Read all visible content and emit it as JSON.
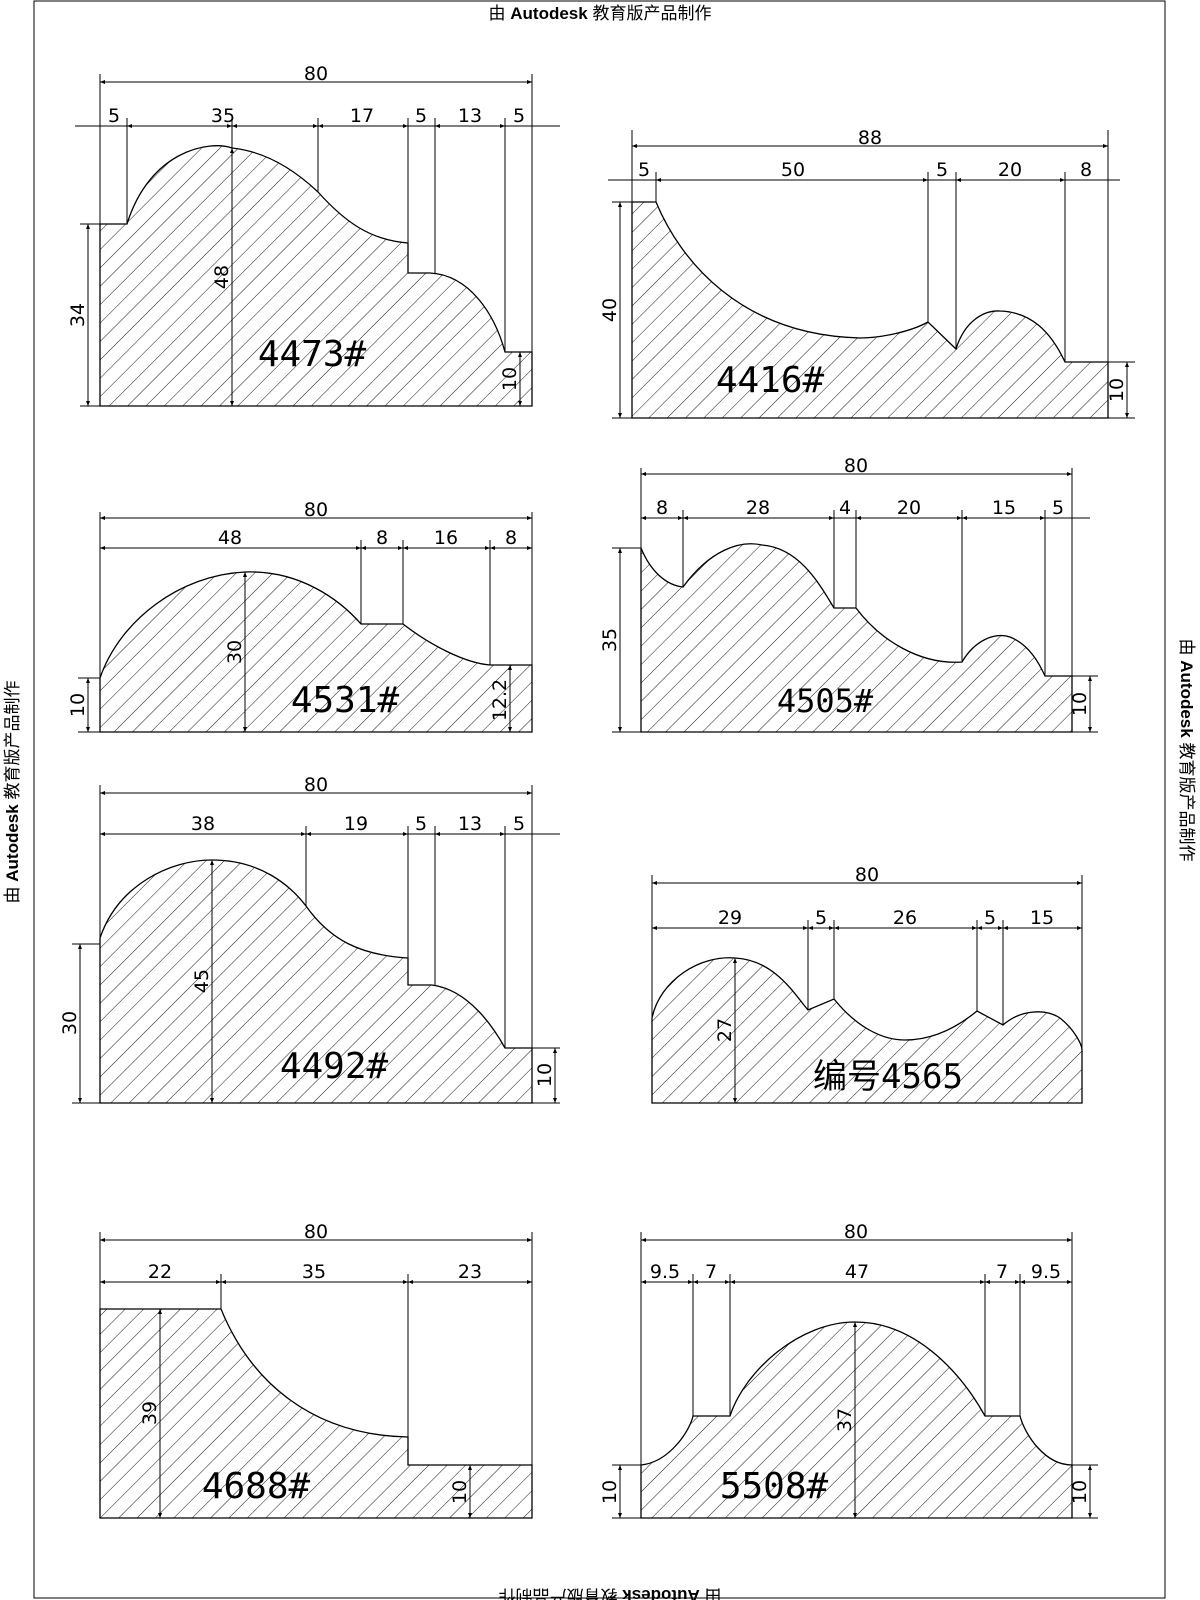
{
  "watermark": {
    "prefix": "由",
    "brand": "Autodesk",
    "suffix": "教育版产品制作"
  },
  "profiles": [
    {
      "code": "4473#",
      "overall_width": "80",
      "segments": [
        "5",
        "35",
        "17",
        "5",
        "13",
        "5"
      ],
      "heights": [
        "34",
        "48",
        "10"
      ]
    },
    {
      "code": "4416#",
      "overall_width": "88",
      "segments": [
        "5",
        "50",
        "5",
        "20",
        "8"
      ],
      "heights": [
        "40",
        "10"
      ]
    },
    {
      "code": "4531#",
      "overall_width": "80",
      "segments": [
        "48",
        "8",
        "16",
        "8"
      ],
      "heights": [
        "10",
        "30",
        "12.2"
      ]
    },
    {
      "code": "4505#",
      "overall_width": "80",
      "segments": [
        "8",
        "28",
        "4",
        "20",
        "15",
        "5"
      ],
      "heights": [
        "35",
        "10"
      ]
    },
    {
      "code": "4492#",
      "overall_width": "80",
      "segments": [
        "38",
        "19",
        "5",
        "13",
        "5"
      ],
      "heights": [
        "30",
        "45",
        "10"
      ]
    },
    {
      "code": "编号4565",
      "overall_width": "80",
      "segments": [
        "29",
        "5",
        "26",
        "5",
        "15"
      ],
      "heights": [
        "27"
      ]
    },
    {
      "code": "4688#",
      "overall_width": "80",
      "segments": [
        "22",
        "35",
        "23"
      ],
      "heights": [
        "39",
        "10"
      ]
    },
    {
      "code": "5508#",
      "overall_width": "80",
      "segments": [
        "9.5",
        "7",
        "47",
        "7",
        "9.5"
      ],
      "heights": [
        "10",
        "37",
        "10"
      ]
    }
  ]
}
